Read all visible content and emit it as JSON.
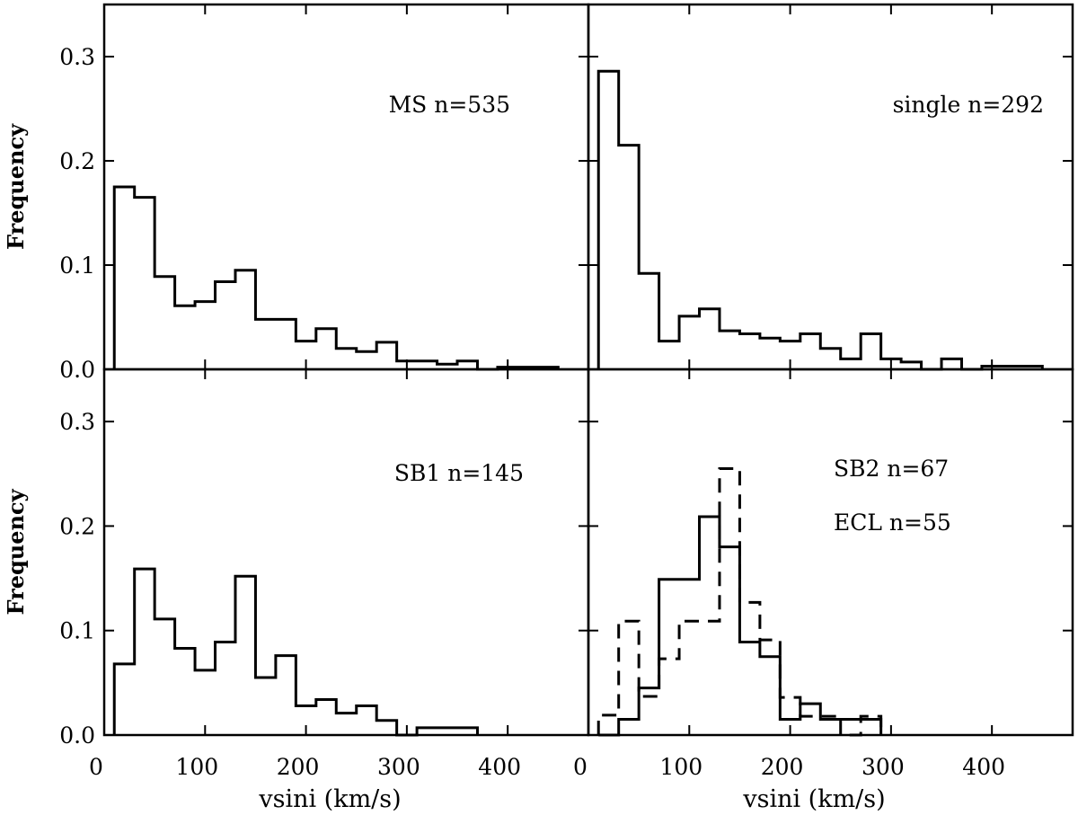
{
  "chart_data": [
    {
      "type": "bar",
      "style": "step-histogram",
      "annotation": [
        "MS n=535"
      ],
      "ylabel": "Frequency",
      "xlabel": "",
      "xlim": [
        0,
        480
      ],
      "ylim": [
        0,
        0.35
      ],
      "xticks": [
        "0",
        "100",
        "200",
        "300",
        "400"
      ],
      "yticks": [
        "0.0",
        "0.1",
        "0.2",
        "0.3"
      ],
      "series": [
        {
          "line": "solid",
          "bin_start": 10,
          "bin_width": 20,
          "values": [
            0.175,
            0.165,
            0.089,
            0.061,
            0.065,
            0.084,
            0.095,
            0.048,
            0.048,
            0.027,
            0.039,
            0.02,
            0.017,
            0.026,
            0.008,
            0.008,
            0.005,
            0.008,
            0,
            0.002,
            0.002,
            0.002
          ]
        }
      ]
    },
    {
      "type": "bar",
      "style": "step-histogram",
      "annotation": [
        "single n=292"
      ],
      "ylabel": "",
      "xlabel": "",
      "xlim": [
        0,
        480
      ],
      "ylim": [
        0,
        0.35
      ],
      "xticks": [
        "0",
        "100",
        "200",
        "300",
        "400"
      ],
      "yticks": [
        "0.0",
        "0.1",
        "0.2",
        "0.3"
      ],
      "series": [
        {
          "line": "solid",
          "bin_start": 10,
          "bin_width": 20,
          "values": [
            0.286,
            0.215,
            0.092,
            0.027,
            0.051,
            0.058,
            0.037,
            0.034,
            0.03,
            0.027,
            0.034,
            0.02,
            0.01,
            0.034,
            0.01,
            0.007,
            0,
            0.01,
            0,
            0.003,
            0.003,
            0.003
          ]
        }
      ]
    },
    {
      "type": "bar",
      "style": "step-histogram",
      "annotation": [
        "SB1 n=145"
      ],
      "ylabel": "Frequency",
      "xlabel": "vsini (km/s)",
      "xlim": [
        0,
        480
      ],
      "ylim": [
        0,
        0.35
      ],
      "xticks": [
        "0",
        "100",
        "200",
        "300",
        "400"
      ],
      "yticks": [
        "0.0",
        "0.1",
        "0.2",
        "0.3"
      ],
      "series": [
        {
          "line": "solid",
          "bin_start": 10,
          "bin_width": 20,
          "values": [
            0.068,
            0.159,
            0.111,
            0.083,
            0.062,
            0.089,
            0.152,
            0.055,
            0.076,
            0.028,
            0.034,
            0.021,
            0.028,
            0.014,
            0,
            0.007,
            0.007,
            0.007
          ]
        }
      ]
    },
    {
      "type": "bar",
      "style": "step-histogram",
      "annotation": [
        "SB2 n=67",
        "ECL n=55"
      ],
      "ylabel": "",
      "xlabel": "vsini (km/s)",
      "xlim": [
        0,
        480
      ],
      "ylim": [
        0,
        0.35
      ],
      "xticks": [
        "0",
        "100",
        "200",
        "300",
        "400"
      ],
      "yticks": [
        "0.0",
        "0.1",
        "0.2",
        "0.3"
      ],
      "series": [
        {
          "line": "solid",
          "bin_start": 10,
          "bin_width": 20,
          "values": [
            0,
            0.015,
            0.045,
            0.149,
            0.149,
            0.209,
            0.18,
            0.089,
            0.075,
            0.015,
            0.03,
            0.015,
            0.015,
            0.015
          ]
        },
        {
          "line": "dashed",
          "bin_start": 10,
          "bin_width": 20,
          "values": [
            0.019,
            0.109,
            0.037,
            0.073,
            0.109,
            0.109,
            0.255,
            0.127,
            0.091,
            0.036,
            0.018,
            0.018,
            0,
            0.018
          ]
        }
      ]
    }
  ]
}
